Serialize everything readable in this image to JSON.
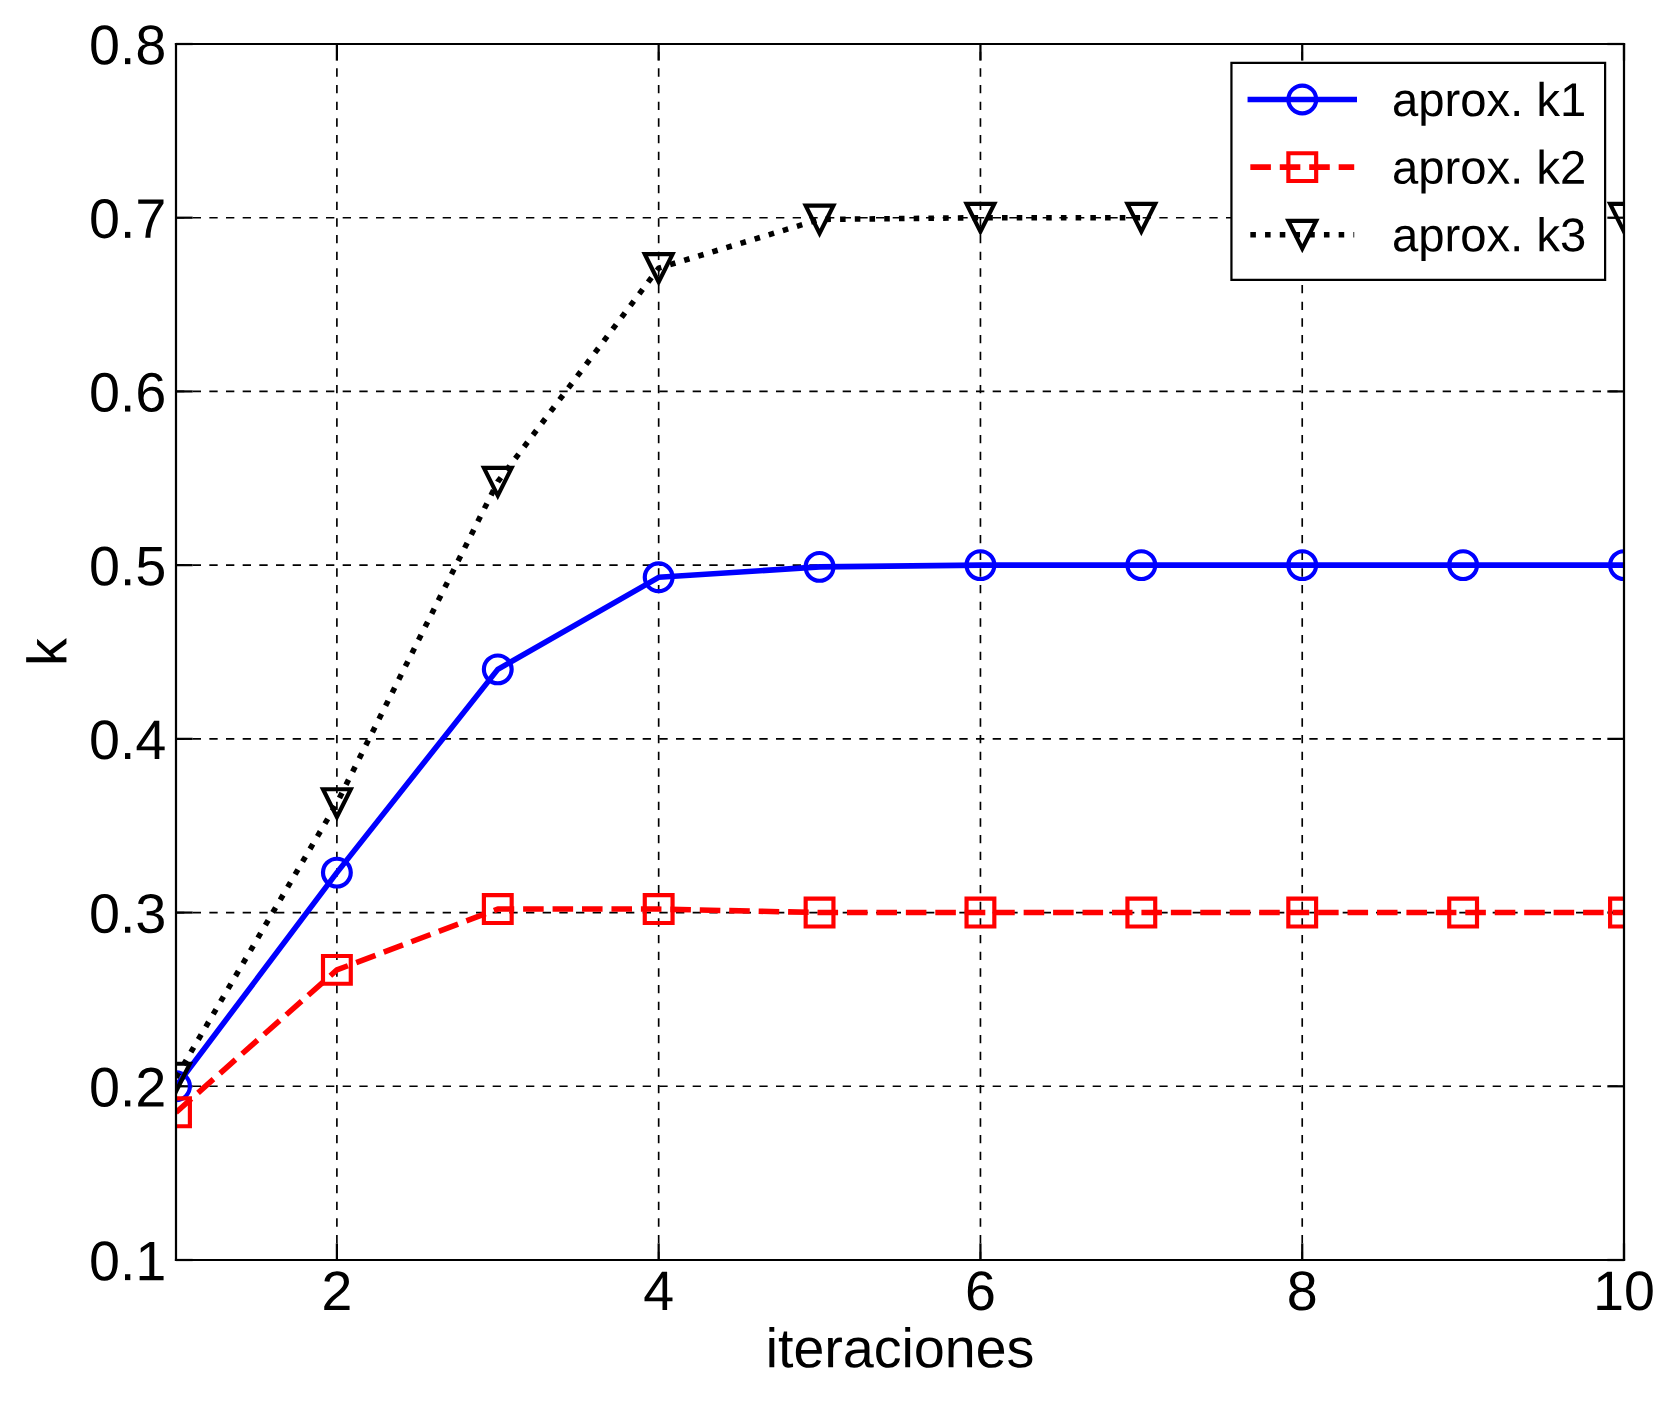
{
  "chart_data": {
    "type": "line",
    "xlabel": "iteraciones",
    "ylabel": "k",
    "x": [
      1,
      2,
      3,
      4,
      5,
      6,
      7,
      8,
      9,
      10
    ],
    "series": [
      {
        "name": "aprox. k1",
        "color": "#0000ff",
        "marker": "circle",
        "line_style": "solid",
        "values": [
          0.2,
          0.323,
          0.44,
          0.493,
          0.499,
          0.5,
          0.5,
          0.5,
          0.5,
          0.5
        ]
      },
      {
        "name": "aprox. k2",
        "color": "#ff0000",
        "marker": "square",
        "line_style": "dashed",
        "values": [
          0.185,
          0.267,
          0.302,
          0.302,
          0.3,
          0.3,
          0.3,
          0.3,
          0.3,
          0.3
        ]
      },
      {
        "name": "aprox. k3",
        "color": "#000000",
        "marker": "triangle",
        "line_style": "dotted",
        "values": [
          0.205,
          0.363,
          0.548,
          0.671,
          0.699,
          0.7,
          0.7,
          null,
          null,
          0.7
        ]
      }
    ],
    "xlim": [
      1,
      10
    ],
    "xticks": [
      2,
      4,
      6,
      8,
      10
    ],
    "ylim": [
      0.1,
      0.8
    ],
    "yticks": [
      0.1,
      0.2,
      0.3,
      0.4,
      0.5,
      0.6,
      0.7,
      0.8
    ],
    "grid": true,
    "legend": "top right"
  }
}
